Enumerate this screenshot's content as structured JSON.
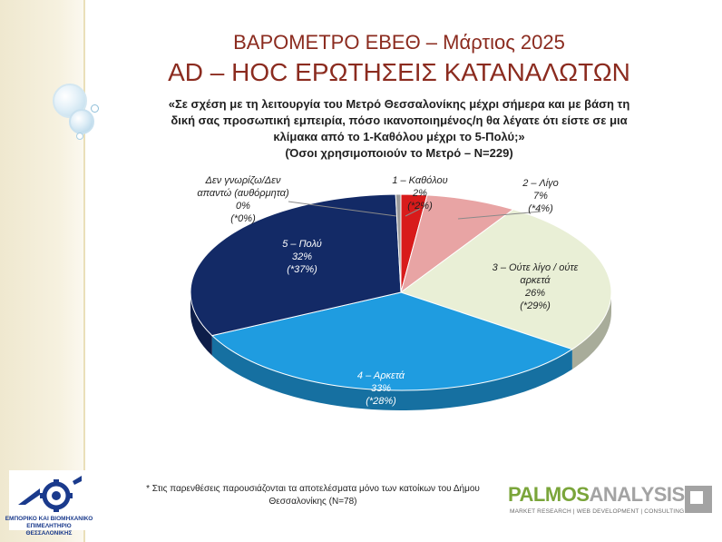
{
  "header": {
    "title_line1": "ΒΑΡΟΜΕΤΡΟ ΕΒΕΘ – Μάρτιος 2025",
    "title_line2": "AD – HOC ΕΡΩΤΗΣΕΙΣ ΚΑΤΑΝΑΛΩΤΩΝ"
  },
  "question": {
    "line1": "«Σε σχέση με τη λειτουργία του Μετρό Θεσσαλονίκης μέχρι σήμερα και με βάση τη",
    "line2": "δική σας προσωπική εμπειρία, πόσο ικανοποιημένος/η θα λέγατε ότι είστε σε μια",
    "line3": "κλίμακα από το 1-Καθόλου μέχρι το 5-Πολύ;»",
    "line4": "(Όσοι χρησιμοποιούν το Μετρό – Ν=229)"
  },
  "chart_data": {
    "type": "pie",
    "style": "3d-pie",
    "slices": [
      {
        "label_lines": [
          "1 – Καθόλου"
        ],
        "value": 2,
        "value_text": "2%",
        "sub_value": 2,
        "sub_text": "(*2%)",
        "color": "#d81b1b",
        "text_color": "#1f1f1f"
      },
      {
        "label_lines": [
          "2 – Λίγο"
        ],
        "value": 7,
        "value_text": "7%",
        "sub_value": 4,
        "sub_text": "(*4%)",
        "color": "#e8a4a4",
        "text_color": "#1f1f1f"
      },
      {
        "label_lines": [
          "3 – Ούτε λίγο / ούτε",
          "αρκετά"
        ],
        "value": 26,
        "value_text": "26%",
        "sub_value": 29,
        "sub_text": "(*29%)",
        "color": "#e9efd6",
        "text_color": "#1f1f1f"
      },
      {
        "label_lines": [
          "4 – Αρκετά"
        ],
        "value": 33,
        "value_text": "33%",
        "sub_value": 28,
        "sub_text": "(*28%)",
        "color": "#1f9ce0",
        "text_color": "#ffffff"
      },
      {
        "label_lines": [
          "5 – Πολύ"
        ],
        "value": 32,
        "value_text": "32%",
        "sub_value": 37,
        "sub_text": "(*37%)",
        "color": "#132a66",
        "text_color": "#ffffff"
      },
      {
        "label_lines": [
          "Δεν γνωρίζω/Δεν",
          "απαντώ (αυθόρμητα)"
        ],
        "value": 0.4,
        "value_text": "0%",
        "sub_value": 0,
        "sub_text": "(*0%)",
        "color": "#9a9a9a",
        "text_color": "#1f1f1f"
      }
    ]
  },
  "footnote": {
    "line1": "* Στις παρενθέσεις παρουσιάζονται τα αποτελέσματα μόνο των κατοίκων του Δήμου",
    "line2": "Θεσσαλονίκης (Ν=78)"
  },
  "logos": {
    "ebeth_line1": "ΕΜΠΟΡΙΚΟ ΚΑΙ ΒΙΟΜΗΧΑΝΙΚΟ",
    "ebeth_line2": "ΕΠΙΜΕΛΗΤΗΡΙΟ ΘΕΣΣΑΛΟΝΙΚΗΣ",
    "palmos_part1": "PALMOS",
    "palmos_part2": "ANALYSIS",
    "palmos_tagline": "MARKET RESEARCH | WEB DEVELOPMENT | CONSULTING"
  },
  "colors": {
    "title": "#8b2b1f",
    "band": "#efe8cf",
    "ebeth_blue": "#1a3a8c",
    "palmos_green": "#7aa53a",
    "palmos_grey": "#a3a3a3"
  }
}
